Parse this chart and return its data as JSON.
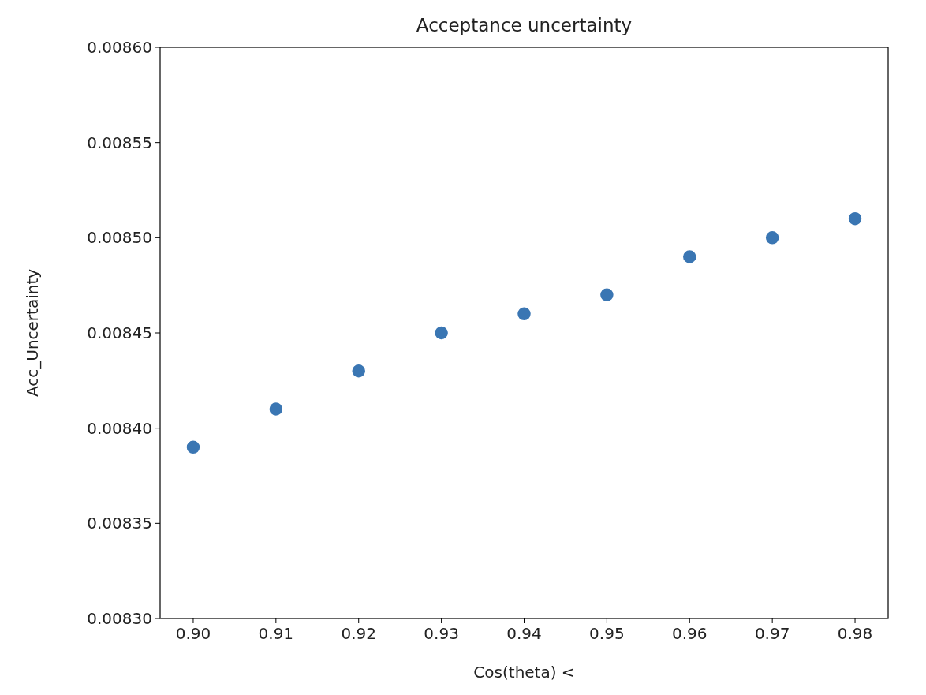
{
  "chart_data": {
    "type": "scatter",
    "title": "Acceptance uncertainty",
    "xlabel": "Cos(theta) <",
    "ylabel": "Acc_Uncertainty",
    "x": [
      0.9,
      0.91,
      0.92,
      0.93,
      0.94,
      0.95,
      0.96,
      0.97,
      0.98
    ],
    "series": [
      {
        "color": "#3a76b3",
        "values": [
          0.00839,
          0.00841,
          0.00843,
          0.00845,
          0.00846,
          0.00847,
          0.00849,
          0.0085,
          0.00851
        ]
      }
    ],
    "xlim": [
      0.896,
      0.984
    ],
    "xticks": [
      {
        "value": 0.9,
        "label": "0.90"
      },
      {
        "value": 0.91,
        "label": "0.91"
      },
      {
        "value": 0.92,
        "label": "0.92"
      },
      {
        "value": 0.93,
        "label": "0.93"
      },
      {
        "value": 0.94,
        "label": "0.94"
      },
      {
        "value": 0.95,
        "label": "0.95"
      },
      {
        "value": 0.96,
        "label": "0.96"
      },
      {
        "value": 0.97,
        "label": "0.97"
      },
      {
        "value": 0.98,
        "label": "0.98"
      }
    ],
    "ylim": [
      0.0083,
      0.0086
    ],
    "yticks": [
      {
        "value": 0.0083,
        "label": "0.00830"
      },
      {
        "value": 0.00835,
        "label": "0.00835"
      },
      {
        "value": 0.0084,
        "label": "0.00840"
      },
      {
        "value": 0.00845,
        "label": "0.00845"
      },
      {
        "value": 0.0085,
        "label": "0.00850"
      },
      {
        "value": 0.00855,
        "label": "0.00855"
      },
      {
        "value": 0.0086,
        "label": "0.00860"
      }
    ],
    "marker": "circle",
    "grid": false
  }
}
